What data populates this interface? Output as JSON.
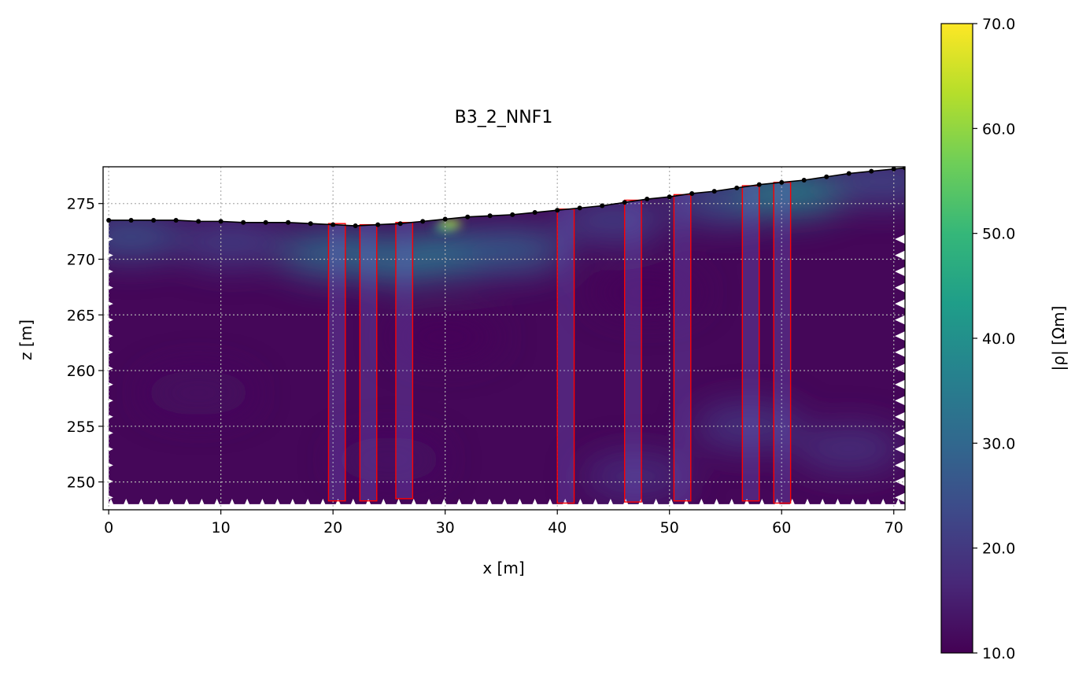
{
  "chart_data": {
    "type": "heatmap",
    "title": "B3_2_NNF1",
    "xlabel": "x [m]",
    "ylabel": "z [m]",
    "xlim": [
      -0.5,
      71.0
    ],
    "ylim": [
      247.5,
      278.3
    ],
    "xticks": [
      0,
      10,
      20,
      30,
      40,
      50,
      60,
      70
    ],
    "yticks": [
      250,
      255,
      260,
      265,
      270,
      275
    ],
    "grid": true,
    "colormap": "viridis",
    "colorbar": {
      "label": "|ρ| [Ωm]",
      "min": 10.0,
      "max": 70.0,
      "ticks": [
        "10.0",
        "20.0",
        "30.0",
        "40.0",
        "50.0",
        "60.0",
        "70.0"
      ]
    },
    "surface_profile": {
      "x": [
        0,
        2,
        4,
        6,
        8,
        10,
        12,
        14,
        16,
        18,
        20,
        22,
        24,
        26,
        28,
        30,
        32,
        34,
        36,
        38,
        40,
        42,
        44,
        46,
        48,
        50,
        52,
        54,
        56,
        58,
        60,
        62,
        64,
        66,
        68,
        70,
        71
      ],
      "z": [
        273.5,
        273.5,
        273.5,
        273.5,
        273.4,
        273.4,
        273.3,
        273.3,
        273.3,
        273.2,
        273.1,
        273.0,
        273.1,
        273.2,
        273.4,
        273.6,
        273.8,
        273.9,
        274.0,
        274.2,
        274.4,
        274.6,
        274.8,
        275.1,
        275.4,
        275.6,
        275.9,
        276.1,
        276.4,
        276.7,
        276.9,
        277.1,
        277.4,
        277.7,
        277.9,
        278.1,
        278.2
      ]
    },
    "resistivity_features": [
      {
        "x": 20,
        "z": 270.5,
        "value": 32
      },
      {
        "x": 26,
        "z": 270.0,
        "value": 33
      },
      {
        "x": 31,
        "z": 270.5,
        "value": 34
      },
      {
        "x": 30,
        "z": 272.8,
        "value": 45
      },
      {
        "x": 30.5,
        "z": 273.2,
        "value": 62
      },
      {
        "x": 36,
        "z": 270.8,
        "value": 28
      },
      {
        "x": 2,
        "z": 272.0,
        "value": 26
      },
      {
        "x": 11,
        "z": 271.5,
        "value": 22
      },
      {
        "x": 45,
        "z": 273.5,
        "value": 22
      },
      {
        "x": 55,
        "z": 275.3,
        "value": 26
      },
      {
        "x": 61,
        "z": 276.0,
        "value": 38
      },
      {
        "x": 69,
        "z": 277.0,
        "value": 24
      },
      {
        "x": 57,
        "z": 255.0,
        "value": 20
      },
      {
        "x": 66,
        "z": 253.0,
        "value": 19
      },
      {
        "x": 47,
        "z": 250.5,
        "value": 18
      },
      {
        "x": 25,
        "z": 252.0,
        "value": 13
      },
      {
        "x": 8,
        "z": 258.0,
        "value": 12
      },
      {
        "x": 48,
        "z": 267.0,
        "value": 11
      },
      {
        "x": 30,
        "z": 263.0,
        "value": 11
      }
    ],
    "boreholes": [
      {
        "x1": 19.6,
        "x2": 21.1,
        "z_top": 273.2,
        "z_bottom": 248.3
      },
      {
        "x1": 22.4,
        "x2": 23.9,
        "z_top": 273.1,
        "z_bottom": 248.3
      },
      {
        "x1": 25.6,
        "x2": 27.1,
        "z_top": 273.3,
        "z_bottom": 248.5
      },
      {
        "x1": 40.0,
        "x2": 41.5,
        "z_top": 274.5,
        "z_bottom": 248.1
      },
      {
        "x1": 46.0,
        "x2": 47.5,
        "z_top": 275.3,
        "z_bottom": 248.2
      },
      {
        "x1": 50.4,
        "x2": 51.9,
        "z_top": 275.8,
        "z_bottom": 248.3
      },
      {
        "x1": 56.5,
        "x2": 58.0,
        "z_top": 276.6,
        "z_bottom": 248.3
      },
      {
        "x1": 59.3,
        "x2": 60.8,
        "z_top": 276.9,
        "z_bottom": 248.1
      }
    ]
  },
  "colors": {
    "borehole_outline": "#ff0000",
    "surface_points": "#000000",
    "grid": "#b0b0b0",
    "viridis_stops": [
      "#440154",
      "#482878",
      "#3e4989",
      "#31688e",
      "#26828e",
      "#1f9e89",
      "#35b779",
      "#6ece58",
      "#b5de2b",
      "#fde725"
    ]
  }
}
